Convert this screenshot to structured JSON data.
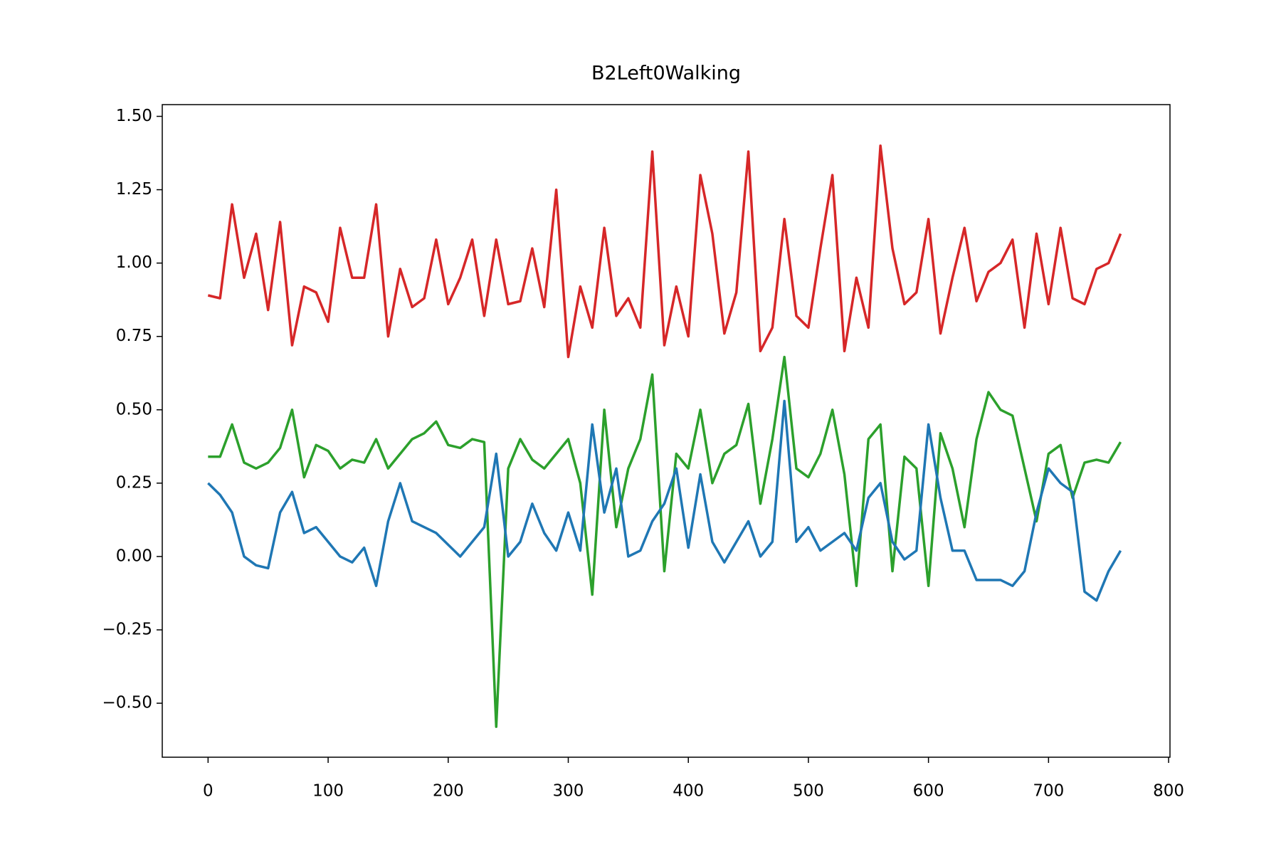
{
  "chart_data": {
    "type": "line",
    "title": "B2Left0Walking",
    "x": [
      0,
      10,
      20,
      30,
      40,
      50,
      60,
      70,
      80,
      90,
      100,
      110,
      120,
      130,
      140,
      150,
      160,
      170,
      180,
      190,
      200,
      210,
      220,
      230,
      240,
      250,
      260,
      270,
      280,
      290,
      300,
      310,
      320,
      330,
      340,
      350,
      360,
      370,
      380,
      390,
      400,
      410,
      420,
      430,
      440,
      450,
      460,
      470,
      480,
      490,
      500,
      510,
      520,
      530,
      540,
      550,
      560,
      570,
      580,
      590,
      600,
      610,
      620,
      630,
      640,
      650,
      660,
      670,
      680,
      690,
      700,
      710,
      720,
      730,
      740,
      750,
      760
    ],
    "series": [
      {
        "color": "#d62728",
        "values": [
          0.89,
          0.88,
          1.2,
          0.95,
          1.1,
          0.84,
          1.14,
          0.72,
          0.92,
          0.9,
          0.8,
          1.12,
          0.95,
          0.95,
          1.2,
          0.75,
          0.98,
          0.85,
          0.88,
          1.08,
          0.86,
          0.95,
          1.08,
          0.82,
          1.08,
          0.86,
          0.87,
          1.05,
          0.85,
          1.25,
          0.68,
          0.92,
          0.78,
          1.12,
          0.82,
          0.88,
          0.78,
          1.38,
          0.72,
          0.92,
          0.75,
          1.3,
          1.1,
          0.76,
          0.9,
          1.38,
          0.7,
          0.78,
          1.15,
          0.82,
          0.78,
          1.05,
          1.3,
          0.7,
          0.95,
          0.78,
          1.4,
          1.05,
          0.86,
          0.9,
          1.15,
          0.76,
          0.95,
          1.12,
          0.87,
          0.97,
          1.0,
          1.08,
          0.78,
          1.1,
          0.86,
          1.12,
          0.88,
          0.86,
          0.98,
          1.0,
          1.1
        ]
      },
      {
        "color": "#2ca02c",
        "values": [
          0.34,
          0.34,
          0.45,
          0.32,
          0.3,
          0.32,
          0.37,
          0.5,
          0.27,
          0.38,
          0.36,
          0.3,
          0.33,
          0.32,
          0.4,
          0.3,
          0.35,
          0.4,
          0.42,
          0.46,
          0.38,
          0.37,
          0.4,
          0.39,
          -0.58,
          0.3,
          0.4,
          0.33,
          0.3,
          0.35,
          0.4,
          0.25,
          -0.13,
          0.5,
          0.1,
          0.3,
          0.4,
          0.62,
          -0.05,
          0.35,
          0.3,
          0.5,
          0.25,
          0.35,
          0.38,
          0.52,
          0.18,
          0.4,
          0.68,
          0.3,
          0.27,
          0.35,
          0.5,
          0.28,
          -0.1,
          0.4,
          0.45,
          -0.05,
          0.34,
          0.3,
          -0.1,
          0.42,
          0.3,
          0.1,
          0.4,
          0.56,
          0.5,
          0.48,
          0.3,
          0.12,
          0.35,
          0.38,
          0.2,
          0.32,
          0.33,
          0.32,
          0.39
        ]
      },
      {
        "color": "#1f77b4",
        "values": [
          0.25,
          0.21,
          0.15,
          0.0,
          -0.03,
          -0.04,
          0.15,
          0.22,
          0.08,
          0.1,
          0.05,
          0.0,
          -0.02,
          0.03,
          -0.1,
          0.12,
          0.25,
          0.12,
          0.1,
          0.08,
          0.04,
          0.0,
          0.05,
          0.1,
          0.35,
          0.0,
          0.05,
          0.18,
          0.08,
          0.02,
          0.15,
          0.02,
          0.45,
          0.15,
          0.3,
          0.0,
          0.02,
          0.12,
          0.18,
          0.3,
          0.03,
          0.28,
          0.05,
          -0.02,
          0.05,
          0.12,
          0.0,
          0.05,
          0.53,
          0.05,
          0.1,
          0.02,
          0.05,
          0.08,
          0.02,
          0.2,
          0.25,
          0.05,
          -0.01,
          0.02,
          0.45,
          0.2,
          0.02,
          0.02,
          -0.08,
          -0.08,
          -0.08,
          -0.1,
          -0.05,
          0.15,
          0.3,
          0.25,
          0.22,
          -0.12,
          -0.15,
          -0.05,
          0.02
        ]
      }
    ],
    "xlim": [
      -38.15,
      801.15
    ],
    "xticks": [
      0,
      100,
      200,
      300,
      400,
      500,
      600,
      700,
      800
    ],
    "ylim": [
      -0.684,
      1.54
    ],
    "yticks": [
      {
        "value": -0.5,
        "label": "−0.50"
      },
      {
        "value": -0.25,
        "label": "−0.25"
      },
      {
        "value": 0,
        "label": "0.00"
      },
      {
        "value": 0.25,
        "label": "0.25"
      },
      {
        "value": 0.5,
        "label": "0.50"
      },
      {
        "value": 0.75,
        "label": "0.75"
      },
      {
        "value": 1,
        "label": "1.00"
      },
      {
        "value": 1.25,
        "label": "1.25"
      },
      {
        "value": 1.5,
        "label": "1.50"
      }
    ],
    "grid": false
  }
}
